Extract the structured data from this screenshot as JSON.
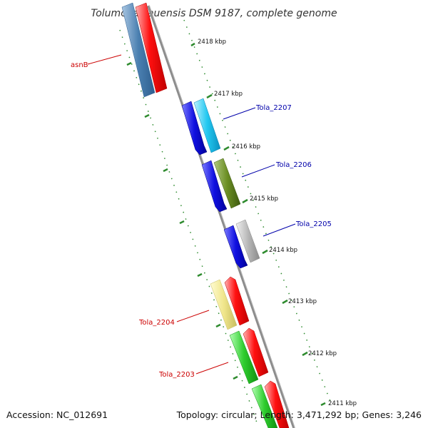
{
  "title": "Tolumonas auensis DSM 9187, complete genome",
  "accession": "Accession: NC_012691",
  "summary": "Topology: circular; Length: 3,471,292 bp; Genes: 3,246",
  "colors": {
    "backbone": "#888888",
    "ruler": "#2e8b2e",
    "forward_label": "#cc0000",
    "reverse_label": "#0000aa"
  },
  "ruler_labels": [
    "2418 kbp",
    "2417 kbp",
    "2416 kbp",
    "2415 kbp",
    "2414 kbp",
    "2413 kbp",
    "2412 kbp",
    "2411 kbp"
  ],
  "features": [
    {
      "name": "asnB",
      "label_color": "#cc0000"
    },
    {
      "name": "Tola_2207",
      "label_color": "#0000aa"
    },
    {
      "name": "Tola_2206",
      "label_color": "#0000aa"
    },
    {
      "name": "Tola_2205",
      "label_color": "#0000aa"
    },
    {
      "name": "Tola_2204",
      "label_color": "#cc0000"
    },
    {
      "name": "Tola_2203",
      "label_color": "#cc0000"
    }
  ]
}
